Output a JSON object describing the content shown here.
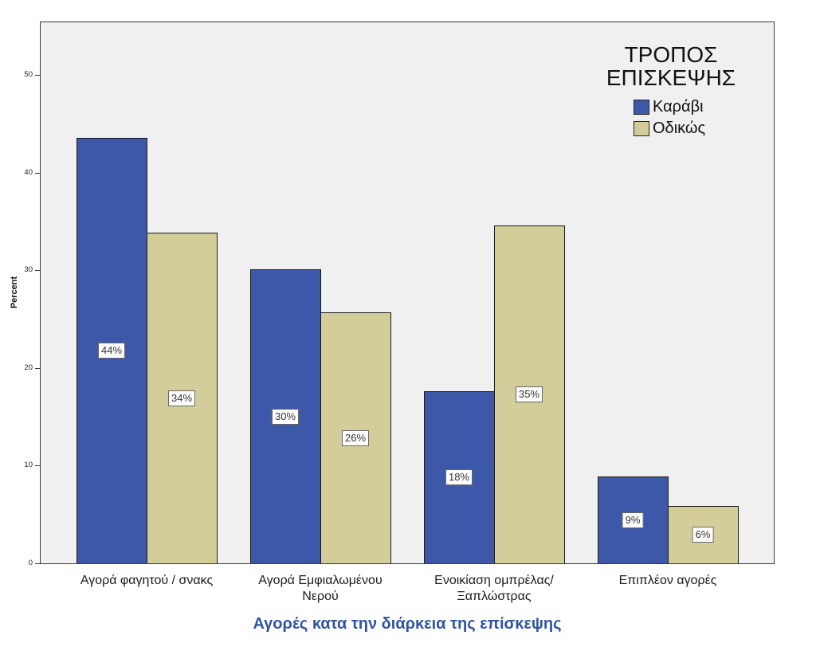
{
  "chart_data": {
    "type": "bar",
    "xlabel": "Αγορές κατα την διάρκεια της επίσκεψης",
    "ylabel": "Percent",
    "ylim": [
      0,
      55.5
    ],
    "yticks": [
      0,
      10,
      20,
      30,
      40,
      50
    ],
    "grid": false,
    "categories": [
      "Αγορά φαγητού / σνακς",
      "Αγορά Εμφιαλωμένου Νερού",
      "Ενοικίαση ομπρέλας/Ξαπλώστρας",
      "Επιπλέον αγορές"
    ],
    "legend": {
      "title": "ΤΡΟΠΟΣ ΕΠΙΣΚΕΨΗΣ",
      "placement": "top-right"
    },
    "series": [
      {
        "name": "Καράβι",
        "color": "#3d58a8",
        "values": [
          43.6,
          30.1,
          17.6,
          8.9
        ],
        "labels": [
          "44%",
          "30%",
          "18%",
          "9%"
        ]
      },
      {
        "name": "Οδικώς",
        "color": "#d3ce99",
        "values": [
          33.9,
          25.7,
          34.6,
          5.9
        ],
        "labels": [
          "34%",
          "26%",
          "35%",
          "6%"
        ]
      }
    ]
  },
  "colors": {
    "plot_background": "#f0f0f0",
    "axis_title": "#2f54a4",
    "bar_outline": "#1a1a1a",
    "frame": "#3a3a3a"
  }
}
